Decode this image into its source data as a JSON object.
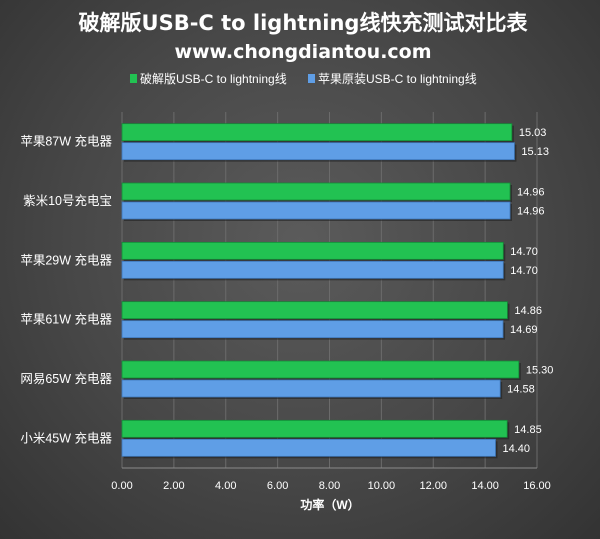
{
  "chart_data": {
    "type": "bar",
    "orientation": "horizontal",
    "title": "破解版USB-C to lightning线快充测试对比表",
    "subtitle": "www.chongdiantou.com",
    "xlabel": "功率（W）",
    "ylabel": "",
    "xlim": [
      0,
      16
    ],
    "xticks": [
      "0.00",
      "2.00",
      "4.00",
      "6.00",
      "8.00",
      "10.00",
      "12.00",
      "14.00",
      "16.00"
    ],
    "grid": true,
    "legend_position": "top",
    "categories": [
      "苹果87W 充电器",
      "紫米10号充电宝",
      "苹果29W 充电器",
      "苹果61W 充电器",
      "网易65W 充电器",
      "小米45W 充电器"
    ],
    "series": [
      {
        "name": "破解版USB-C to lightning线",
        "color": "#22c252",
        "values": [
          15.03,
          14.96,
          14.7,
          14.86,
          15.3,
          14.85
        ],
        "labels": [
          "15.03",
          "14.96",
          "14.70",
          "14.86",
          "15.30",
          "14.85"
        ]
      },
      {
        "name": "苹果原装USB-C to lightning线",
        "color": "#5f9ee6",
        "values": [
          15.13,
          14.96,
          14.7,
          14.69,
          14.58,
          14.4
        ],
        "labels": [
          "15.13",
          "14.96",
          "14.70",
          "14.69",
          "14.58",
          "14.40"
        ]
      }
    ]
  }
}
